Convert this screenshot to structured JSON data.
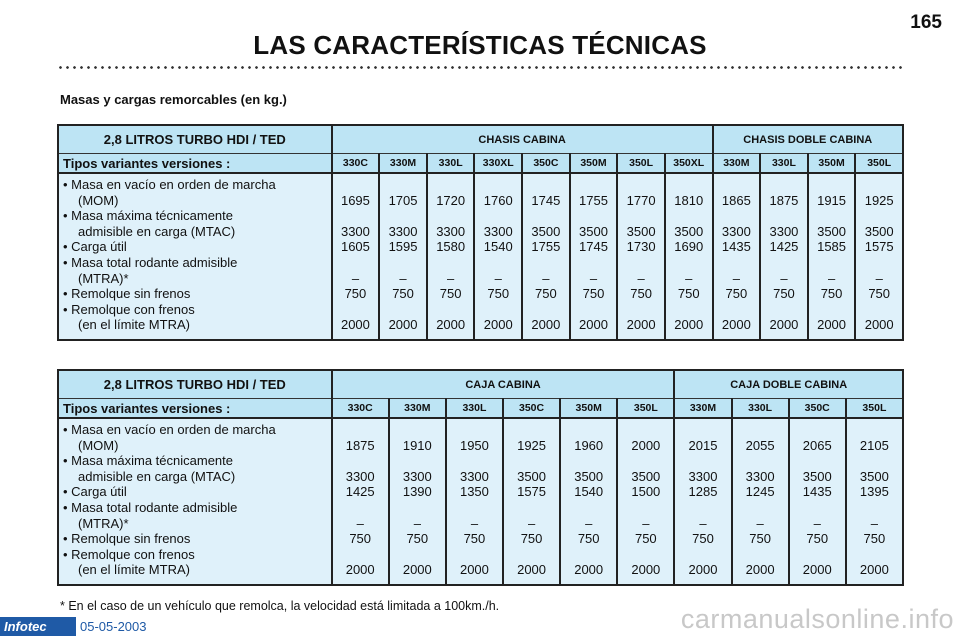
{
  "page": {
    "number": "165",
    "title": "LAS CARACTERÍSTICAS TÉCNICAS",
    "subtitle": "Masas y cargas remorcables (en kg.)",
    "footnote": "* En el caso de un vehículo que remolca, la velocidad está limitada a 100km./h.",
    "brand": "Infotec",
    "date": "05-05-2003",
    "watermark": "carmanualsonline.info"
  },
  "tables": [
    {
      "engine": "2,8 LITROS TURBO HDI / TED",
      "variant_label": "Tipos variantes versiones :",
      "groups": [
        {
          "label": "CHASIS CABINA",
          "span": 8
        },
        {
          "label": "CHASIS DOBLE CABINA",
          "span": 4
        }
      ],
      "variants": [
        "330C",
        "330M",
        "330L",
        "330XL",
        "350C",
        "350M",
        "350L",
        "350XL",
        "330M",
        "330L",
        "350M",
        "350L"
      ],
      "rows": [
        {
          "label": [
            "• Masa en vacío en orden de marcha",
            "(MOM)"
          ],
          "values": [
            "1695",
            "1705",
            "1720",
            "1760",
            "1745",
            "1755",
            "1770",
            "1810",
            "1865",
            "1875",
            "1915",
            "1925"
          ]
        },
        {
          "label": [
            "• Masa máxima técnicamente",
            "admisible en carga (MTAC)"
          ],
          "values": [
            "3300",
            "3300",
            "3300",
            "3300",
            "3500",
            "3500",
            "3500",
            "3500",
            "3300",
            "3300",
            "3500",
            "3500"
          ]
        },
        {
          "label": [
            "• Carga útil"
          ],
          "values": [
            "1605",
            "1595",
            "1580",
            "1540",
            "1755",
            "1745",
            "1730",
            "1690",
            "1435",
            "1425",
            "1585",
            "1575"
          ]
        },
        {
          "label": [
            "• Masa total rodante admisible",
            "(MTRA)*"
          ],
          "values": [
            "–",
            "–",
            "–",
            "–",
            "–",
            "–",
            "–",
            "–",
            "–",
            "–",
            "–",
            "–"
          ]
        },
        {
          "label": [
            "• Remolque sin frenos"
          ],
          "values": [
            "750",
            "750",
            "750",
            "750",
            "750",
            "750",
            "750",
            "750",
            "750",
            "750",
            "750",
            "750"
          ]
        },
        {
          "label": [
            "• Remolque con frenos",
            "(en el límite MTRA)"
          ],
          "values": [
            "2000",
            "2000",
            "2000",
            "2000",
            "2000",
            "2000",
            "2000",
            "2000",
            "2000",
            "2000",
            "2000",
            "2000"
          ]
        }
      ]
    },
    {
      "engine": "2,8 LITROS TURBO HDI / TED",
      "variant_label": "Tipos variantes versiones :",
      "groups": [
        {
          "label": "CAJA CABINA",
          "span": 6
        },
        {
          "label": "CAJA DOBLE CABINA",
          "span": 4
        }
      ],
      "variants": [
        "330C",
        "330M",
        "330L",
        "350C",
        "350M",
        "350L",
        "330M",
        "330L",
        "350C",
        "350L"
      ],
      "rows": [
        {
          "label": [
            "• Masa en vacío en orden de marcha",
            "(MOM)"
          ],
          "values": [
            "1875",
            "1910",
            "1950",
            "1925",
            "1960",
            "2000",
            "2015",
            "2055",
            "2065",
            "2105"
          ]
        },
        {
          "label": [
            "• Masa máxima técnicamente",
            "admisible en carga (MTAC)"
          ],
          "values": [
            "3300",
            "3300",
            "3300",
            "3500",
            "3500",
            "3500",
            "3300",
            "3300",
            "3500",
            "3500"
          ]
        },
        {
          "label": [
            "• Carga útil"
          ],
          "values": [
            "1425",
            "1390",
            "1350",
            "1575",
            "1540",
            "1500",
            "1285",
            "1245",
            "1435",
            "1395"
          ]
        },
        {
          "label": [
            "• Masa total rodante admisible",
            "(MTRA)*"
          ],
          "values": [
            "–",
            "–",
            "–",
            "–",
            "–",
            "–",
            "–",
            "–",
            "–",
            "–"
          ]
        },
        {
          "label": [
            "• Remolque sin frenos"
          ],
          "values": [
            "750",
            "750",
            "750",
            "750",
            "750",
            "750",
            "750",
            "750",
            "750",
            "750"
          ]
        },
        {
          "label": [
            "• Remolque con frenos",
            "(en el límite MTRA)"
          ],
          "values": [
            "2000",
            "2000",
            "2000",
            "2000",
            "2000",
            "2000",
            "2000",
            "2000",
            "2000",
            "2000"
          ]
        }
      ]
    }
  ]
}
